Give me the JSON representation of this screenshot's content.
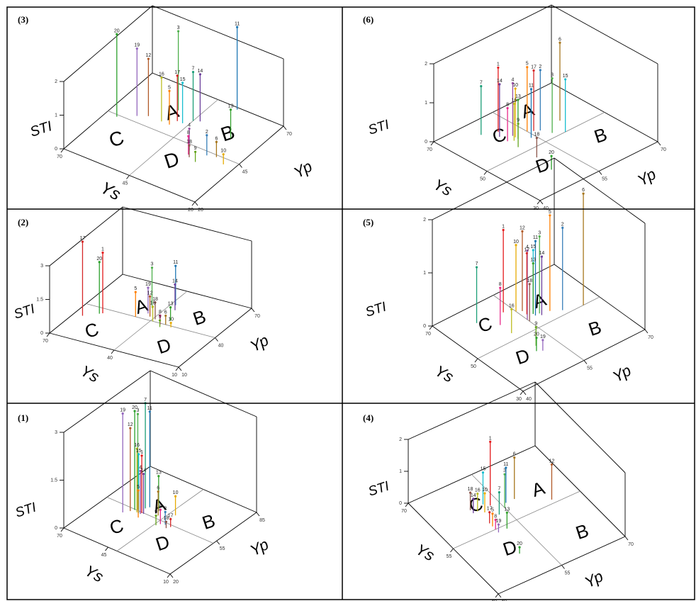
{
  "axis_titles": {
    "z": "STI",
    "x": "Ys",
    "y": "Yp"
  },
  "quadrants": [
    "A",
    "B",
    "C",
    "D"
  ],
  "stem_colors": [
    "#e41a1c",
    "#377eb8",
    "#4daf4a",
    "#984ea3",
    "#ff7f00",
    "#a6761d",
    "#1b9e77",
    "#e7298a",
    "#66a61e",
    "#e6ab02",
    "#1f78b4",
    "#b15928",
    "#33a02c",
    "#6a3d9a",
    "#17becf",
    "#bcbd22",
    "#d62728",
    "#8c564b",
    "#9467bd",
    "#2ca02c"
  ],
  "chart_data": [
    {
      "type": "scatter3d",
      "panel": "(3)",
      "z_ticks": [
        "0",
        "1",
        "2"
      ],
      "x_ticks": [
        "70",
        "45",
        "20"
      ],
      "y_ticks": [
        "20",
        "45",
        "70"
      ],
      "points": [
        {
          "label": "20",
          "ys": 66,
          "yp": 44,
          "sti": 2.45
        },
        {
          "label": "3",
          "ys": 52,
          "yp": 58,
          "sti": 2.35
        },
        {
          "label": "11",
          "ys": 37,
          "yp": 69,
          "sti": 2.45
        },
        {
          "label": "19",
          "ys": 61,
          "yp": 48,
          "sti": 2.0
        },
        {
          "label": "12",
          "ys": 58,
          "yp": 50,
          "sti": 1.7
        },
        {
          "label": "7",
          "ys": 45,
          "yp": 56,
          "sti": 1.45
        },
        {
          "label": "14",
          "ys": 43,
          "yp": 57,
          "sti": 1.4
        },
        {
          "label": "17",
          "ys": 49,
          "yp": 53,
          "sti": 1.35
        },
        {
          "label": "16",
          "ys": 53,
          "yp": 50,
          "sti": 1.3
        },
        {
          "label": "15",
          "ys": 47,
          "yp": 53,
          "sti": 1.2
        },
        {
          "label": "5",
          "ys": 50,
          "yp": 50,
          "sti": 1.0
        },
        {
          "label": "13",
          "ys": 30,
          "yp": 55,
          "sti": 0.85
        },
        {
          "label": "4",
          "ys": 37,
          "yp": 42,
          "sti": 0.65
        },
        {
          "label": "2",
          "ys": 31,
          "yp": 43,
          "sti": 0.6
        },
        {
          "label": "8",
          "ys": 36,
          "yp": 40,
          "sti": 0.55
        },
        {
          "label": "6",
          "ys": 28,
          "yp": 44,
          "sti": 0.45
        },
        {
          "label": "18",
          "ys": 35,
          "yp": 39,
          "sti": 0.35
        },
        {
          "label": "9",
          "ys": 32,
          "yp": 38,
          "sti": 0.3
        },
        {
          "label": "10",
          "ys": 24,
          "yp": 42,
          "sti": 0.3
        }
      ]
    },
    {
      "type": "scatter3d",
      "panel": "(6)",
      "z_ticks": [
        "0",
        "1",
        "2"
      ],
      "x_ticks": [
        "70",
        "50",
        "30"
      ],
      "y_ticks": [
        "40",
        "55",
        "70"
      ],
      "points": [
        {
          "label": "6",
          "ys": 55,
          "yp": 62,
          "sti": 2.0
        },
        {
          "label": "1",
          "ys": 62,
          "yp": 51,
          "sti": 1.65
        },
        {
          "label": "5",
          "ys": 57,
          "yp": 55,
          "sti": 1.65
        },
        {
          "label": "17",
          "ys": 56,
          "yp": 56,
          "sti": 1.55
        },
        {
          "label": "2",
          "ys": 55,
          "yp": 57,
          "sti": 1.55
        },
        {
          "label": "3",
          "ys": 52,
          "yp": 58,
          "sti": 1.4
        },
        {
          "label": "15",
          "ys": 50,
          "yp": 60,
          "sti": 1.35
        },
        {
          "label": "14",
          "ys": 60,
          "yp": 50,
          "sti": 1.35
        },
        {
          "label": "4",
          "ys": 58,
          "yp": 52,
          "sti": 1.35
        },
        {
          "label": "7",
          "ys": 64,
          "yp": 48,
          "sti": 1.25
        },
        {
          "label": "10",
          "ys": 57,
          "yp": 52,
          "sti": 1.25
        },
        {
          "label": "11",
          "ys": 54,
          "yp": 54,
          "sti": 1.25
        },
        {
          "label": "13",
          "ys": 56,
          "yp": 52,
          "sti": 1.0
        },
        {
          "label": "16",
          "ys": 56,
          "yp": 51,
          "sti": 0.95
        },
        {
          "label": "8",
          "ys": 57,
          "yp": 50,
          "sti": 0.85
        },
        {
          "label": "9",
          "ys": 53,
          "yp": 50,
          "sti": 0.6
        },
        {
          "label": "18",
          "ys": 46,
          "yp": 50,
          "sti": 0.5
        },
        {
          "label": "20",
          "ys": 39,
          "yp": 49,
          "sti": 0.35
        }
      ]
    },
    {
      "type": "scatter3d",
      "panel": "(2)",
      "z_ticks": [
        "0",
        "1.5",
        "3"
      ],
      "x_ticks": [
        "70",
        "40",
        "10"
      ],
      "y_ticks": [
        "10",
        "40",
        "70"
      ],
      "points": [
        {
          "label": "17",
          "ys": 66,
          "yp": 30,
          "sti": 3.3
        },
        {
          "label": "1",
          "ys": 60,
          "yp": 36,
          "sti": 2.7
        },
        {
          "label": "20",
          "ys": 61,
          "yp": 35,
          "sti": 2.3
        },
        {
          "label": "3",
          "ys": 45,
          "yp": 50,
          "sti": 1.8
        },
        {
          "label": "11",
          "ys": 38,
          "yp": 57,
          "sti": 1.75
        },
        {
          "label": "14",
          "ys": 36,
          "yp": 53,
          "sti": 1.15
        },
        {
          "label": "19",
          "ys": 44,
          "yp": 45,
          "sti": 1.15
        },
        {
          "label": "5",
          "ys": 47,
          "yp": 40,
          "sti": 1.1
        },
        {
          "label": "12",
          "ys": 42,
          "yp": 43,
          "sti": 0.9
        },
        {
          "label": "18",
          "ys": 39,
          "yp": 42,
          "sti": 0.75
        },
        {
          "label": "16",
          "ys": 39,
          "yp": 40,
          "sti": 0.65
        },
        {
          "label": "13",
          "ys": 33,
          "yp": 44,
          "sti": 0.6
        },
        {
          "label": "8",
          "ys": 35,
          "yp": 39,
          "sti": 0.4
        },
        {
          "label": "6",
          "ys": 33,
          "yp": 40,
          "sti": 0.4
        },
        {
          "label": "9",
          "ys": 34,
          "yp": 37,
          "sti": 0.3
        },
        {
          "label": "10",
          "ys": 30,
          "yp": 39,
          "sti": 0.2
        }
      ]
    },
    {
      "type": "scatter3d",
      "panel": "(5)",
      "z_ticks": [
        "0",
        "1",
        "2"
      ],
      "x_ticks": [
        "70",
        "50",
        "30"
      ],
      "y_ticks": [
        "40",
        "55",
        "70"
      ],
      "points": [
        {
          "label": "6",
          "ys": 50,
          "yp": 66,
          "sti": 2.1
        },
        {
          "label": "5",
          "ys": 54,
          "yp": 60,
          "sti": 1.8
        },
        {
          "label": "1",
          "ys": 62,
          "yp": 53,
          "sti": 1.55
        },
        {
          "label": "2",
          "ys": 52,
          "yp": 62,
          "sti": 1.55
        },
        {
          "label": "12",
          "ys": 59,
          "yp": 56,
          "sti": 1.5
        },
        {
          "label": "3",
          "ys": 55,
          "yp": 58,
          "sti": 1.45
        },
        {
          "label": "11",
          "ys": 55,
          "yp": 57,
          "sti": 1.4
        },
        {
          "label": "4",
          "ys": 55,
          "yp": 55,
          "sti": 1.3
        },
        {
          "label": "10",
          "ys": 60,
          "yp": 55,
          "sti": 1.25
        },
        {
          "label": "15",
          "ys": 56,
          "yp": 57,
          "sti": 1.2
        },
        {
          "label": "17",
          "ys": 57,
          "yp": 56,
          "sti": 1.15
        },
        {
          "label": "14",
          "ys": 54,
          "yp": 58,
          "sti": 1.1
        },
        {
          "label": "7",
          "ys": 63,
          "yp": 47,
          "sti": 1.05
        },
        {
          "label": "13",
          "ys": 56,
          "yp": 57,
          "sti": 0.95
        },
        {
          "label": "18",
          "ys": 54,
          "yp": 55,
          "sti": 0.7
        },
        {
          "label": "8",
          "ys": 58,
          "yp": 50,
          "sti": 0.7
        },
        {
          "label": "16",
          "ys": 53,
          "yp": 50,
          "sti": 0.45
        },
        {
          "label": "9",
          "ys": 44,
          "yp": 51,
          "sti": 0.35
        },
        {
          "label": "20",
          "ys": 42,
          "yp": 50,
          "sti": 0.25
        },
        {
          "label": "19",
          "ys": 41,
          "yp": 51,
          "sti": 0.2
        }
      ]
    },
    {
      "type": "scatter3d",
      "panel": "(1)",
      "z_ticks": [
        "0",
        "1.5",
        "3"
      ],
      "x_ticks": [
        "70",
        "45",
        "10"
      ],
      "y_ticks": [
        "20",
        "55",
        "85"
      ],
      "points": [
        {
          "label": "7",
          "ys": 51,
          "yp": 56,
          "sti": 3.3
        },
        {
          "label": "19",
          "ys": 57,
          "yp": 47,
          "sti": 3.1
        },
        {
          "label": "20",
          "ys": 54,
          "yp": 52,
          "sti": 3.1
        },
        {
          "label": "3",
          "ys": 53,
          "yp": 53,
          "sti": 3.0
        },
        {
          "label": "11",
          "ys": 50,
          "yp": 58,
          "sti": 3.0
        },
        {
          "label": "12",
          "ys": 55,
          "yp": 50,
          "sti": 2.6
        },
        {
          "label": "16",
          "ys": 52,
          "yp": 51,
          "sti": 2.0
        },
        {
          "label": "15",
          "ys": 51,
          "yp": 51,
          "sti": 1.85
        },
        {
          "label": "1",
          "ys": 50,
          "yp": 52,
          "sti": 1.8
        },
        {
          "label": "4",
          "ys": 50,
          "yp": 51,
          "sti": 1.35
        },
        {
          "label": "14",
          "ys": 49,
          "yp": 52,
          "sti": 1.25
        },
        {
          "label": "13",
          "ys": 45,
          "yp": 58,
          "sti": 1.1
        },
        {
          "label": "5",
          "ys": 49,
          "yp": 48,
          "sti": 0.85
        },
        {
          "label": "6",
          "ys": 43,
          "yp": 55,
          "sti": 0.75
        },
        {
          "label": "10",
          "ys": 37,
          "yp": 60,
          "sti": 0.6
        },
        {
          "label": "8",
          "ys": 38,
          "yp": 50,
          "sti": 0.45
        },
        {
          "label": "2",
          "ys": 36,
          "yp": 51,
          "sti": 0.4
        },
        {
          "label": "9",
          "ys": 39,
          "yp": 48,
          "sti": 0.3
        },
        {
          "label": "17",
          "ys": 33,
          "yp": 51,
          "sti": 0.25
        },
        {
          "label": "18",
          "ys": 34,
          "yp": 49,
          "sti": 0.2
        }
      ]
    },
    {
      "type": "scatter3d",
      "panel": "(4)",
      "z_ticks": [
        "0",
        "1",
        "2"
      ],
      "x_ticks": [
        "70",
        "55",
        "40"
      ],
      "y_ticks": [
        "40",
        "55",
        "70"
      ],
      "points": [
        {
          "label": "1",
          "ys": 61,
          "yp": 53,
          "sti": 2.0
        },
        {
          "label": "6",
          "ys": 60,
          "yp": 58,
          "sti": 1.3
        },
        {
          "label": "3",
          "ys": 59,
          "yp": 55,
          "sti": 1.05
        },
        {
          "label": "11",
          "ys": 60,
          "yp": 56,
          "sti": 1.1
        },
        {
          "label": "15",
          "ys": 62,
          "yp": 52,
          "sti": 1.0
        },
        {
          "label": "12",
          "ys": 56,
          "yp": 64,
          "sti": 1.1
        },
        {
          "label": "7",
          "ys": 58,
          "yp": 53,
          "sti": 0.7
        },
        {
          "label": "10",
          "ys": 60,
          "yp": 51,
          "sti": 0.6
        },
        {
          "label": "18",
          "ys": 62,
          "yp": 49,
          "sti": 0.55
        },
        {
          "label": "16",
          "ys": 61,
          "yp": 50,
          "sti": 0.55
        },
        {
          "label": "14",
          "ys": 61,
          "yp": 49,
          "sti": 0.45
        },
        {
          "label": "13",
          "ys": 54,
          "yp": 52,
          "sti": 0.5
        },
        {
          "label": "17",
          "ys": 57,
          "yp": 50,
          "sti": 0.35
        },
        {
          "label": "5",
          "ys": 56,
          "yp": 50,
          "sti": 0.4
        },
        {
          "label": "8",
          "ys": 55,
          "yp": 50,
          "sti": 0.3
        },
        {
          "label": "19",
          "ys": 54,
          "yp": 50,
          "sti": 0.25
        },
        {
          "label": "20",
          "ys": 47,
          "yp": 50,
          "sti": 0.2
        }
      ]
    }
  ]
}
